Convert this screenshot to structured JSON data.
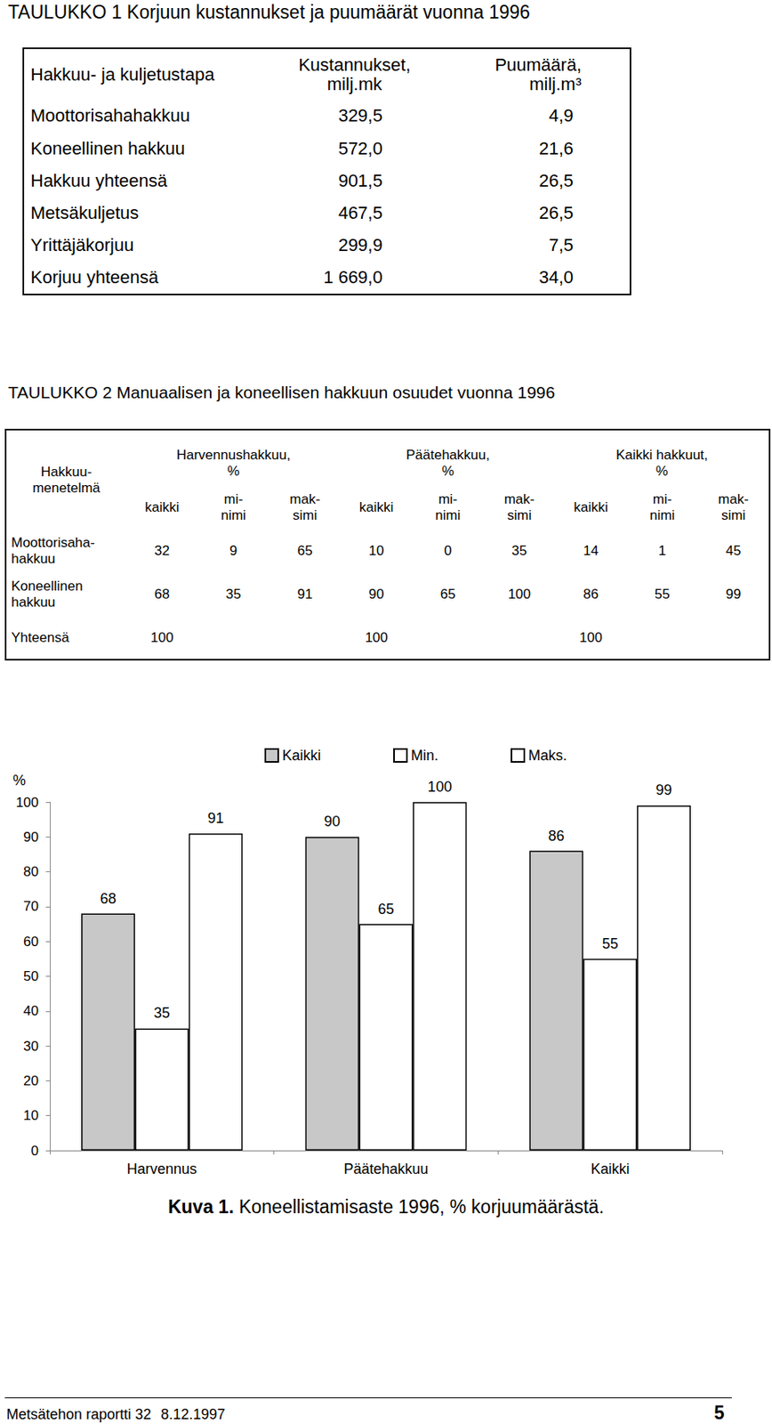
{
  "table1": {
    "title": "TAULUKKO 1   Korjuun kustannukset ja puumäärät vuonna 1996",
    "header": [
      "Hakkuu- ja kuljetustapa",
      "Kustannukset,\nmilj.mk",
      "Puumäärä,\nmilj.m³"
    ],
    "rows": [
      [
        "Moottorisahahakkuu",
        "329,5",
        "4,9"
      ],
      [
        "Koneellinen hakkuu",
        "572,0",
        "21,6"
      ],
      [
        "Hakkuu yhteensä",
        "901,5",
        "26,5"
      ],
      [
        "Metsäkuljetus",
        "467,5",
        "26,5"
      ],
      [
        "Yrittäjäkorjuu",
        "299,9",
        "7,5"
      ],
      [
        "Korjuu yhteensä",
        "1 669,0",
        "34,0"
      ]
    ]
  },
  "table2": {
    "title": "TAULUKKO 2   Manuaalisen ja koneellisen hakkuun osuudet vuonna 1996",
    "row_header": "Hakkuu-\nmenetelmä",
    "groups": [
      "Harvennushakkuu,\n%",
      "Päätehakkuu,\n%",
      "Kaikki hakkuut,\n%"
    ],
    "subheaders": [
      "kaikki",
      "mi-\nnimi",
      "mak-\nsimi"
    ],
    "rows": [
      {
        "label": "Moottorisaha-\nhakkuu",
        "values": [
          "32",
          "9",
          "65",
          "10",
          "0",
          "35",
          "14",
          "1",
          "45"
        ]
      },
      {
        "label": "Koneellinen\nhakkuu",
        "values": [
          "68",
          "35",
          "91",
          "90",
          "65",
          "100",
          "86",
          "55",
          "99"
        ]
      }
    ],
    "total": {
      "label": "Yhteensä",
      "values": [
        "100",
        "100",
        "100"
      ]
    }
  },
  "chart_data": {
    "type": "bar",
    "ylabel": "%",
    "categories": [
      "Harvennus",
      "Päätehakkuu",
      "Kaikki"
    ],
    "series": [
      {
        "name": "Kaikki",
        "color": "#c8c8c8",
        "values": [
          68,
          90,
          86
        ]
      },
      {
        "name": "Min.",
        "color": "#ffffff",
        "values": [
          35,
          65,
          55
        ]
      },
      {
        "name": "Maks.",
        "color": "#ffffff",
        "values": [
          91,
          100,
          99
        ]
      }
    ],
    "ylim": [
      0,
      100
    ],
    "yticks": [
      0,
      10,
      20,
      30,
      40,
      50,
      60,
      70,
      80,
      90,
      100
    ],
    "grid": false,
    "legend": "top",
    "data_labels": true
  },
  "caption": {
    "label": "Kuva 1.",
    "text": "Koneellistamisaste 1996, % korjuumäärästä."
  },
  "footer": {
    "report": "Metsätehon raportti 32",
    "date": "8.12.1997",
    "page": "5"
  }
}
